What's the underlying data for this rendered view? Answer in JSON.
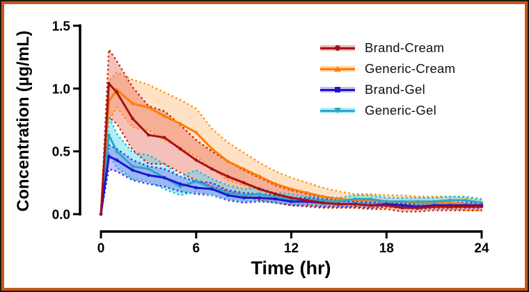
{
  "figure": {
    "outer_border_color": "#241708",
    "inner_border_color": "#c05a20",
    "background": "#ffffff"
  },
  "chart_data": {
    "type": "line",
    "title": "",
    "xlabel": "Time (hr)",
    "ylabel": "Concentration (µg/mL)",
    "xlim": [
      0,
      24
    ],
    "ylim": [
      0,
      1.5
    ],
    "grid": false,
    "legend_position": "top-right-inside",
    "x_tick_values": [
      0,
      6,
      12,
      18,
      24
    ],
    "x_tick_labels": [
      "0",
      "6",
      "12",
      "18",
      "24"
    ],
    "y_tick_values": [
      0,
      0.5,
      1.0,
      1.5
    ],
    "y_tick_labels": [
      "0.0",
      "0.5",
      "1.0",
      "1.5"
    ],
    "x": [
      0,
      0.5,
      1,
      2,
      3,
      4,
      5,
      6,
      7,
      8,
      9,
      10,
      11,
      12,
      13,
      14,
      15,
      16,
      17,
      18,
      19,
      20,
      21,
      22,
      23,
      24
    ],
    "band_note": "shaded region bounded by dotted lines = variability envelope (upper/lower)",
    "series": [
      {
        "name": "Brand-Cream",
        "color": "#a51116",
        "dot_color": "#bf1d05",
        "band_color": "#e8594a",
        "band_opacity": 0.38,
        "marker": "circle",
        "values": [
          0,
          1.04,
          0.97,
          0.76,
          0.63,
          0.61,
          0.52,
          0.43,
          0.36,
          0.3,
          0.25,
          0.2,
          0.16,
          0.13,
          0.11,
          0.09,
          0.08,
          0.08,
          0.07,
          0.07,
          0.05,
          0.05,
          0.06,
          0.06,
          0.06,
          0.06
        ],
        "upper": [
          0,
          1.31,
          1.22,
          1.01,
          0.86,
          0.82,
          0.71,
          0.59,
          0.5,
          0.42,
          0.35,
          0.29,
          0.23,
          0.19,
          0.16,
          0.13,
          0.11,
          0.11,
          0.1,
          0.1,
          0.08,
          0.08,
          0.09,
          0.09,
          0.09,
          0.09
        ],
        "lower": [
          0,
          0.77,
          0.72,
          0.51,
          0.4,
          0.4,
          0.33,
          0.27,
          0.22,
          0.18,
          0.15,
          0.11,
          0.09,
          0.07,
          0.06,
          0.05,
          0.05,
          0.05,
          0.04,
          0.04,
          0.02,
          0.02,
          0.03,
          0.03,
          0.03,
          0.03
        ]
      },
      {
        "name": "Generic-Cream",
        "color": "#ff7d00",
        "dot_color": "#ff8c0a",
        "band_color": "#ffa64d",
        "band_opacity": 0.32,
        "marker": "triangle-up",
        "values": [
          0,
          0.9,
          0.99,
          0.88,
          0.85,
          0.78,
          0.72,
          0.65,
          0.52,
          0.42,
          0.36,
          0.3,
          0.24,
          0.2,
          0.17,
          0.14,
          0.12,
          0.11,
          0.11,
          0.1,
          0.1,
          0.09,
          0.09,
          0.09,
          0.08,
          0.07
        ],
        "upper": [
          0,
          1.06,
          1.13,
          1.07,
          1.03,
          0.97,
          0.91,
          0.84,
          0.68,
          0.57,
          0.49,
          0.41,
          0.34,
          0.29,
          0.25,
          0.21,
          0.18,
          0.16,
          0.16,
          0.15,
          0.15,
          0.14,
          0.14,
          0.14,
          0.13,
          0.11
        ],
        "lower": [
          0,
          0.74,
          0.85,
          0.69,
          0.67,
          0.59,
          0.53,
          0.46,
          0.36,
          0.27,
          0.23,
          0.19,
          0.14,
          0.11,
          0.09,
          0.07,
          0.06,
          0.06,
          0.06,
          0.05,
          0.05,
          0.04,
          0.04,
          0.04,
          0.03,
          0.03
        ]
      },
      {
        "name": "Brand-Gel",
        "color": "#1f13cf",
        "dot_color": "#2e2ee0",
        "band_color": "#7a6ef0",
        "band_opacity": 0.42,
        "marker": "square",
        "values": [
          0,
          0.46,
          0.43,
          0.35,
          0.31,
          0.29,
          0.24,
          0.21,
          0.2,
          0.15,
          0.13,
          0.13,
          0.12,
          0.1,
          0.1,
          0.09,
          0.08,
          0.08,
          0.07,
          0.08,
          0.07,
          0.06,
          0.07,
          0.07,
          0.07,
          0.07
        ],
        "upper": [
          0,
          0.55,
          0.52,
          0.43,
          0.38,
          0.36,
          0.3,
          0.26,
          0.25,
          0.19,
          0.17,
          0.16,
          0.15,
          0.13,
          0.13,
          0.12,
          0.1,
          0.1,
          0.09,
          0.1,
          0.09,
          0.08,
          0.09,
          0.09,
          0.09,
          0.09
        ],
        "lower": [
          0,
          0.36,
          0.34,
          0.27,
          0.24,
          0.22,
          0.18,
          0.16,
          0.15,
          0.11,
          0.09,
          0.1,
          0.09,
          0.07,
          0.07,
          0.06,
          0.06,
          0.06,
          0.05,
          0.06,
          0.05,
          0.04,
          0.05,
          0.05,
          0.05,
          0.05
        ]
      },
      {
        "name": "Generic-Gel",
        "color": "#2ba7c9",
        "dot_color": "#17b5d8",
        "band_color": "#4fd9ec",
        "band_opacity": 0.45,
        "marker": "triangle-down",
        "values": [
          0,
          0.63,
          0.5,
          0.38,
          0.36,
          0.29,
          0.22,
          0.26,
          0.21,
          0.17,
          0.15,
          0.16,
          0.13,
          0.12,
          0.11,
          0.11,
          0.1,
          0.12,
          0.12,
          0.1,
          0.1,
          0.1,
          0.1,
          0.11,
          0.11,
          0.09
        ],
        "upper": [
          0,
          0.78,
          0.64,
          0.49,
          0.47,
          0.4,
          0.3,
          0.35,
          0.28,
          0.23,
          0.2,
          0.21,
          0.17,
          0.16,
          0.14,
          0.14,
          0.13,
          0.15,
          0.15,
          0.13,
          0.13,
          0.13,
          0.13,
          0.14,
          0.14,
          0.12
        ],
        "lower": [
          0,
          0.48,
          0.37,
          0.28,
          0.26,
          0.2,
          0.15,
          0.18,
          0.15,
          0.12,
          0.1,
          0.11,
          0.09,
          0.08,
          0.08,
          0.08,
          0.07,
          0.09,
          0.09,
          0.07,
          0.07,
          0.07,
          0.07,
          0.08,
          0.08,
          0.06
        ]
      }
    ]
  }
}
